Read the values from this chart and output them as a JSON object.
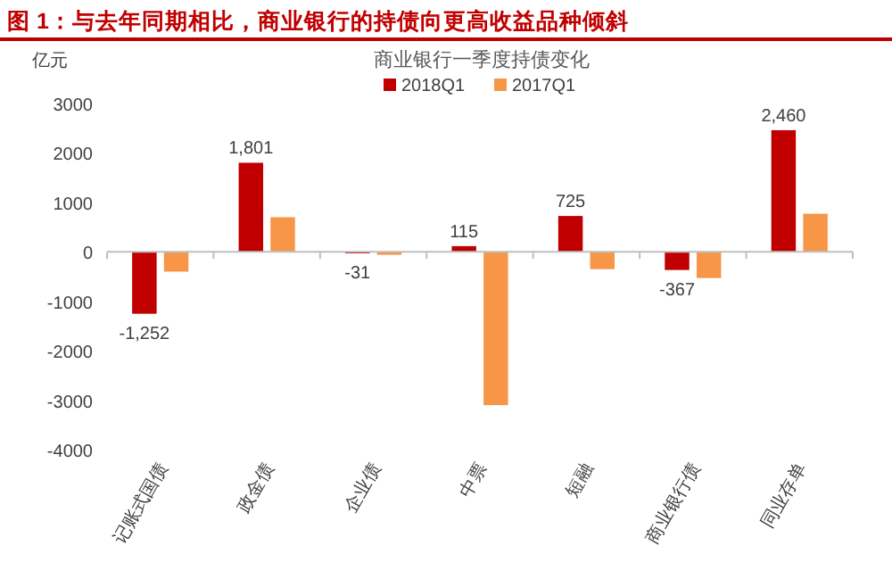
{
  "chart_data": {
    "type": "bar",
    "title": "图 1：与去年同期相比，商业银行的持债向更高收益品种倾斜",
    "subtitle": "商业银行一季度持债变化",
    "ylabel": "亿元",
    "categories": [
      "记账式国债",
      "政金债",
      "企业债",
      "中票",
      "短融",
      "商业银行债",
      "同业存单"
    ],
    "series": [
      {
        "name": "2018Q1",
        "color": "#c00000",
        "values": [
          -1252,
          1801,
          -31,
          115,
          725,
          -367,
          2460
        ],
        "value_labels": [
          "-1,252",
          "1,801",
          "-31",
          "115",
          "725",
          "-367",
          "2,460"
        ]
      },
      {
        "name": "2017Q1",
        "color": "#f79646",
        "values": [
          -400,
          700,
          -60,
          -3100,
          -350,
          -530,
          770
        ]
      }
    ],
    "ylim": [
      -4000,
      3000
    ],
    "yticks": [
      -4000,
      -3000,
      -2000,
      -1000,
      0,
      1000,
      2000,
      3000
    ],
    "legend": "top"
  }
}
